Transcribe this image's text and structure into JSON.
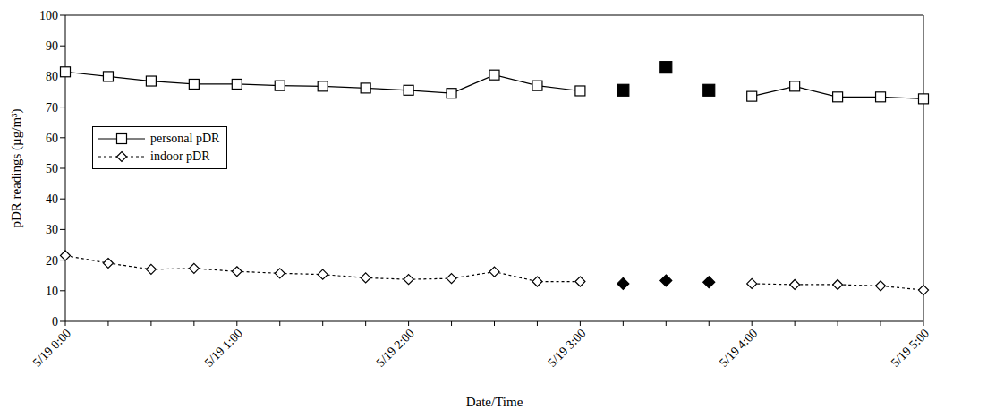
{
  "chart_data": {
    "type": "line",
    "x_label": "Date/Time",
    "y_label": "pDR readings (µg/m³)",
    "categories": [
      "5/19 0:00",
      null,
      null,
      null,
      "5/19 1:00",
      null,
      null,
      null,
      "5/19 2:00",
      null,
      null,
      null,
      "5/19 3:00",
      null,
      null,
      null,
      "5/19 4:00",
      null,
      null,
      null,
      "5/19 5:00"
    ],
    "series": [
      {
        "name": "personal pDR",
        "color": "#000000",
        "marker": "square",
        "line_style": "solid",
        "values": [
          81.5,
          80,
          78.5,
          77.5,
          77.5,
          77,
          76.8,
          76.2,
          75.5,
          74.5,
          80.5,
          77,
          75.3,
          null,
          null,
          null,
          73.5,
          76.8,
          73.3,
          73.3,
          72.7
        ]
      },
      {
        "name": "indoor pDR",
        "color": "#000000",
        "marker": "diamond",
        "line_style": "dotted",
        "values": [
          21.5,
          19,
          17,
          17.3,
          16.3,
          15.7,
          15.3,
          14.2,
          13.7,
          14,
          16.2,
          13,
          13,
          null,
          null,
          null,
          12.3,
          12,
          12,
          11.6,
          10.2
        ]
      },
      {
        "name": "personal pDR",
        "color": "#000000",
        "marker": "filled_square",
        "line_style": "none",
        "values": [
          null,
          null,
          null,
          null,
          null,
          null,
          null,
          null,
          null,
          null,
          null,
          null,
          null,
          75.5,
          83,
          75.5,
          null,
          null,
          null,
          null,
          null
        ]
      },
      {
        "name": "indoor pDR",
        "color": "#000000",
        "marker": "filled_diamond",
        "line_style": "none",
        "values": [
          null,
          null,
          null,
          null,
          null,
          null,
          null,
          null,
          null,
          null,
          null,
          null,
          null,
          12.3,
          13.3,
          12.8,
          null,
          null,
          null,
          null,
          null
        ]
      }
    ],
    "ylim": [
      0,
      100
    ],
    "yticks": [
      0,
      10,
      20,
      30,
      40,
      50,
      60,
      70,
      80,
      90,
      100
    ],
    "legend": "left",
    "grid": false
  }
}
